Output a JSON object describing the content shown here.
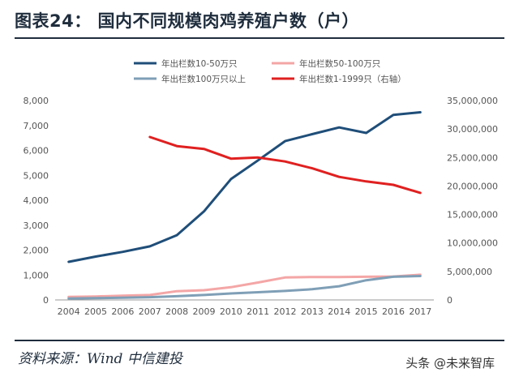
{
  "header": {
    "title": "图表24：  国内不同规模肉鸡养殖户数（户）"
  },
  "footer": {
    "source": "资料来源：Wind  中信建投",
    "watermark": "头条 @未来智库"
  },
  "chart_data": {
    "type": "line",
    "x": [
      "2004",
      "2005",
      "2006",
      "2007",
      "2008",
      "2009",
      "2010",
      "2011",
      "2012",
      "2013",
      "2014",
      "2015",
      "2016",
      "2017"
    ],
    "y_left_ticks": [
      "0",
      "1,000",
      "2,000",
      "3,000",
      "4,000",
      "5,000",
      "6,000",
      "7,000",
      "8,000"
    ],
    "y_right_ticks": [
      "0",
      "5,000,000",
      "10,000,000",
      "15,000,000",
      "20,000,000",
      "25,000,000",
      "30,000,000",
      "35,000,000"
    ],
    "ylim_left": [
      0,
      8000
    ],
    "ylim_right": [
      0,
      35000000
    ],
    "legend_position": "top",
    "series": [
      {
        "name": "年出栏数10-50万只",
        "axis": "left",
        "color": "#1f4e79",
        "values": [
          1530,
          1740,
          1930,
          2150,
          2600,
          3550,
          4850,
          5600,
          6370,
          6650,
          6920,
          6700,
          7420,
          7530
        ]
      },
      {
        "name": "年出栏数50-100万只",
        "axis": "left",
        "color": "#f4a6a6",
        "values": [
          120,
          140,
          170,
          200,
          350,
          390,
          510,
          700,
          900,
          920,
          920,
          930,
          940,
          1010
        ]
      },
      {
        "name": "年出栏数100万只以上",
        "axis": "left",
        "color": "#7f9fb6",
        "values": [
          60,
          70,
          90,
          110,
          150,
          200,
          260,
          310,
          360,
          430,
          550,
          790,
          930,
          960
        ]
      },
      {
        "name": "年出栏数1-1999只（右轴）",
        "axis": "right",
        "color": "#e02020",
        "values": [
          null,
          null,
          null,
          28600000,
          27000000,
          26500000,
          24800000,
          25000000,
          24300000,
          23100000,
          21600000,
          20800000,
          20200000,
          18800000
        ]
      }
    ]
  }
}
